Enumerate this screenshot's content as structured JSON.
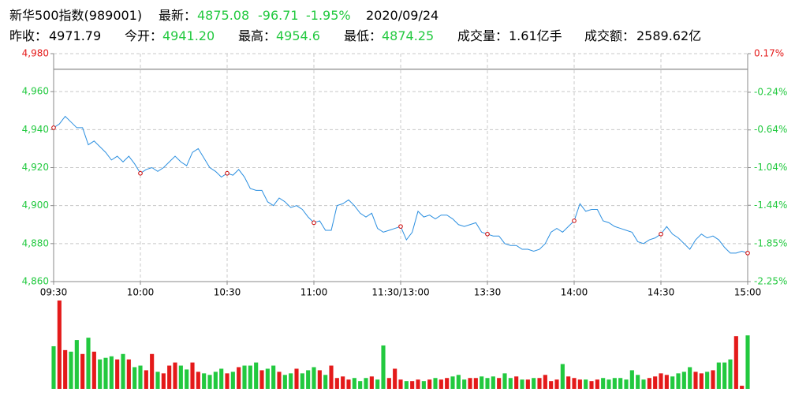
{
  "header": {
    "rows": [
      [
        {
          "text": "新华500指数(989001)",
          "color": "#000000"
        },
        {
          "text": "最新：",
          "color": "#000000"
        },
        {
          "text": "4875.08",
          "color": "#22c93f"
        },
        {
          "text": "-96.71",
          "color": "#22c93f"
        },
        {
          "text": "-1.95%",
          "color": "#22c93f"
        },
        {
          "text": "2020/09/24",
          "color": "#000000"
        }
      ],
      [
        {
          "text": "昨收：",
          "color": "#000000"
        },
        {
          "text": "4971.79",
          "color": "#000000"
        },
        {
          "text": "今开：",
          "color": "#000000"
        },
        {
          "text": "4941.20",
          "color": "#22c93f"
        },
        {
          "text": "最高：",
          "color": "#000000"
        },
        {
          "text": "4954.6",
          "color": "#22c93f"
        },
        {
          "text": "最低：",
          "color": "#000000"
        },
        {
          "text": "4874.25",
          "color": "#22c93f"
        },
        {
          "text": "成交量：",
          "color": "#000000"
        },
        {
          "text": "1.61亿手",
          "color": "#000000"
        },
        {
          "text": "成交额：",
          "color": "#000000"
        },
        {
          "text": "2589.62亿",
          "color": "#000000"
        }
      ]
    ]
  },
  "chart_data": {
    "type": "line",
    "xlim": [
      0,
      240
    ],
    "xticks": [
      {
        "value": 0,
        "label": "09:30"
      },
      {
        "value": 30,
        "label": "10:00"
      },
      {
        "value": 60,
        "label": "10:30"
      },
      {
        "value": 90,
        "label": "11:00"
      },
      {
        "value": 120,
        "label": "11:30/13:00"
      },
      {
        "value": 150,
        "label": "13:30"
      },
      {
        "value": 180,
        "label": "14:00"
      },
      {
        "value": 210,
        "label": "14:30"
      },
      {
        "value": 240,
        "label": "15:00"
      }
    ],
    "ylim": [
      4860,
      4980
    ],
    "yticks": [
      {
        "value": 4860,
        "label": "4,860"
      },
      {
        "value": 4880,
        "label": "4,880"
      },
      {
        "value": 4900,
        "label": "4,900"
      },
      {
        "value": 4920,
        "label": "4,920"
      },
      {
        "value": 4940,
        "label": "4,940"
      },
      {
        "value": 4960,
        "label": "4,960"
      },
      {
        "value": 4980,
        "label": "4,980"
      }
    ],
    "y2lim": [
      -2.25,
      0.17
    ],
    "y2ticks": [
      {
        "value": -2.25,
        "label": "-2.25%"
      },
      {
        "value": -1.85,
        "label": "-1.85%"
      },
      {
        "value": -1.44,
        "label": "-1.44%"
      },
      {
        "value": -1.04,
        "label": "-1.04%"
      },
      {
        "value": -0.64,
        "label": "-0.64%"
      },
      {
        "value": -0.24,
        "label": "-0.24%"
      },
      {
        "value": 0.17,
        "label": "0.17%"
      }
    ],
    "grid": true,
    "up_color": "#e41a1a",
    "down_color": "#22c93f",
    "series": [
      {
        "color": "#2b8fe0",
        "values": [
          4941,
          4943,
          4947,
          4944,
          4941,
          4941,
          4932,
          4934,
          4931,
          4928,
          4924,
          4926,
          4923,
          4926,
          4922,
          4917,
          4919,
          4920,
          4918,
          4920,
          4923,
          4926,
          4923,
          4921,
          4928,
          4930,
          4925,
          4920,
          4918,
          4915,
          4917,
          4916,
          4919,
          4915,
          4909,
          4908,
          4908,
          4902,
          4900,
          4904,
          4902,
          4899,
          4900,
          4898,
          4894,
          4891,
          4892,
          4887,
          4887,
          4900,
          4901,
          4903,
          4900,
          4896,
          4894,
          4896,
          4888,
          4886,
          4887,
          4888,
          4889,
          4882,
          4886,
          4897,
          4894,
          4895,
          4893,
          4895,
          4895,
          4893,
          4890,
          4889,
          4890,
          4891,
          4886,
          4885,
          4884,
          4884,
          4880,
          4879,
          4879,
          4877,
          4877,
          4876,
          4877,
          4880,
          4886,
          4888,
          4886,
          4889,
          4892,
          4901,
          4897,
          4898,
          4898,
          4892,
          4891,
          4889,
          4888,
          4887,
          4886,
          4881,
          4880,
          4882,
          4883,
          4885,
          4889,
          4885,
          4883,
          4880,
          4877,
          4882,
          4885,
          4883,
          4884,
          4882,
          4878,
          4875,
          4875,
          4876,
          4875
        ]
      }
    ],
    "volume": {
      "ylim": [
        0,
        115
      ],
      "values": [
        55,
        114,
        50,
        48,
        63,
        45,
        66,
        48,
        38,
        40,
        42,
        38,
        45,
        38,
        28,
        30,
        24,
        45,
        22,
        20,
        30,
        34,
        30,
        25,
        34,
        22,
        20,
        18,
        22,
        26,
        20,
        22,
        28,
        30,
        30,
        34,
        24,
        26,
        30,
        22,
        18,
        20,
        26,
        20,
        24,
        28,
        24,
        18,
        30,
        14,
        16,
        12,
        14,
        10,
        14,
        16,
        12,
        56,
        14,
        26,
        12,
        10,
        10,
        12,
        10,
        12,
        14,
        12,
        14,
        16,
        18,
        12,
        14,
        14,
        16,
        14,
        16,
        14,
        20,
        14,
        16,
        12,
        12,
        14,
        14,
        18,
        10,
        12,
        32,
        16,
        14,
        12,
        12,
        10,
        12,
        14,
        12,
        14,
        14,
        12,
        24,
        18,
        12,
        14,
        16,
        20,
        18,
        16,
        20,
        22,
        28,
        22,
        20,
        22,
        24,
        34,
        34,
        38,
        68,
        4,
        69
      ]
    }
  }
}
